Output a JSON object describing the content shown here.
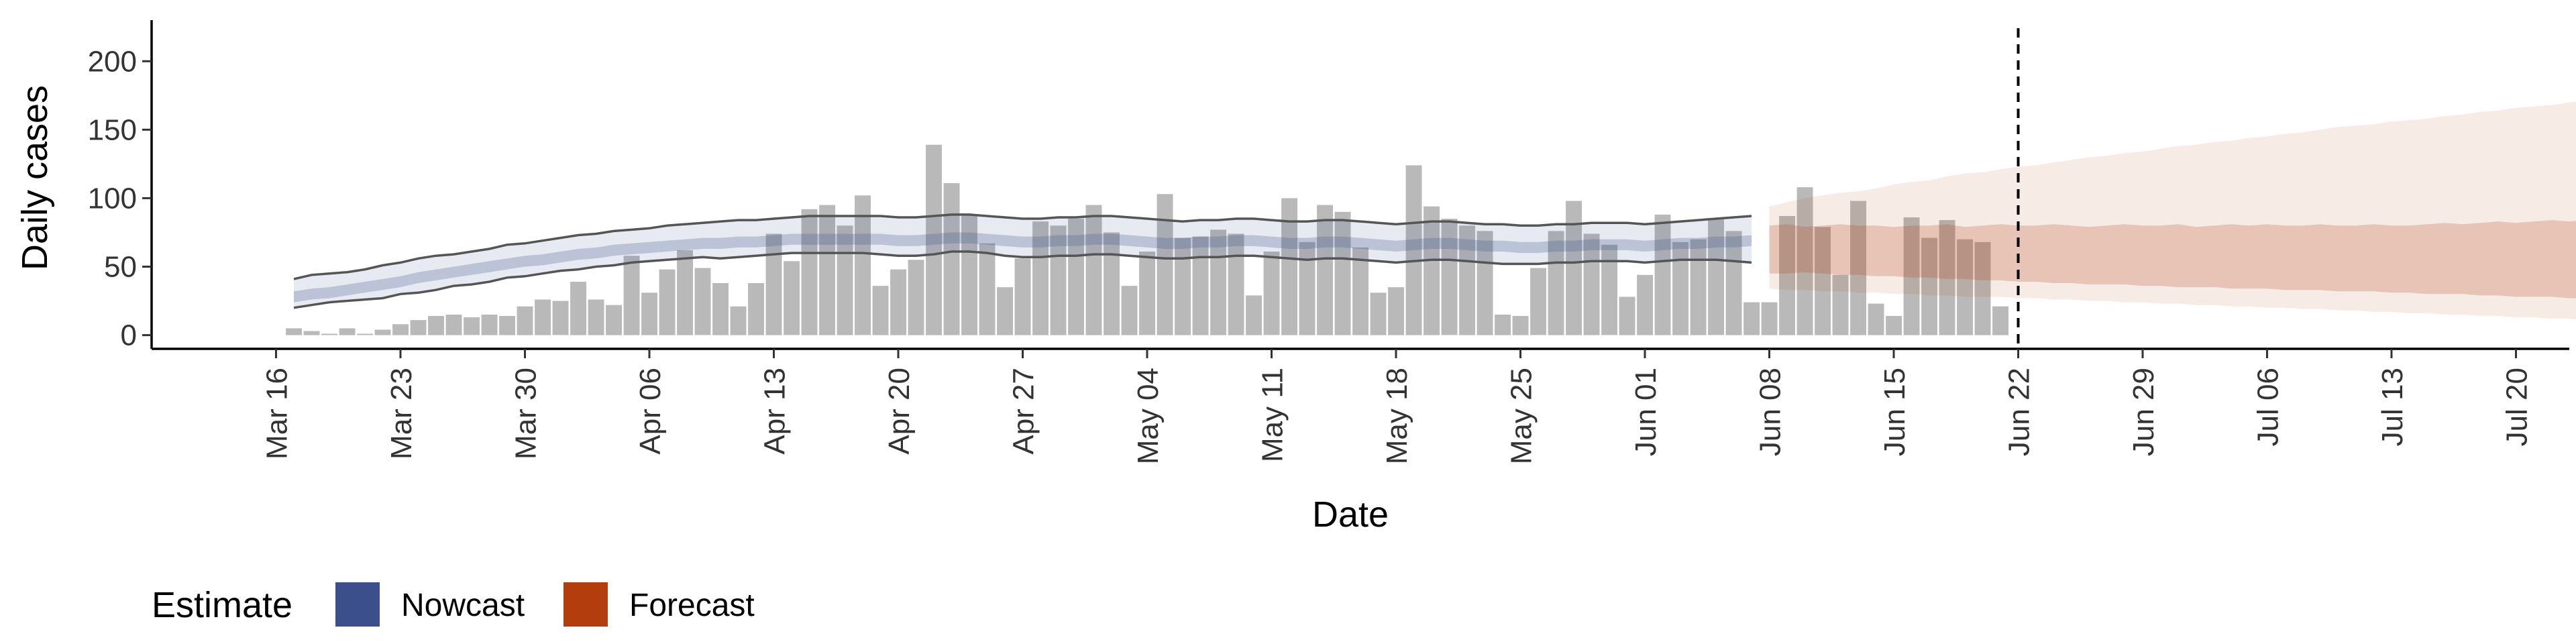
{
  "chart_data": {
    "type": "bar",
    "xlabel": "Date",
    "ylabel": "Daily cases",
    "x_start": "2020-03-17",
    "x_ticks": [
      "Mar 16",
      "Mar 23",
      "Mar 30",
      "Apr 06",
      "Apr 13",
      "Apr 20",
      "Apr 27",
      "May 04",
      "May 11",
      "May 18",
      "May 25",
      "Jun 01",
      "Jun 08",
      "Jun 15",
      "Jun 22",
      "Jun 29",
      "Jul 06",
      "Jul 13",
      "Jul 20"
    ],
    "y_ticks": [
      0,
      50,
      100,
      150,
      200
    ],
    "ylim": [
      -10,
      230
    ],
    "xlim": [
      "2020-03-09",
      "2020-07-23"
    ],
    "grid": false,
    "forecast_start": "2020-06-22",
    "daily_cases": [
      5,
      3,
      1,
      5,
      1,
      4,
      8,
      11,
      14,
      15,
      13,
      15,
      14,
      21,
      26,
      25,
      39,
      26,
      22,
      58,
      31,
      48,
      62,
      49,
      38,
      21,
      38,
      74,
      54,
      92,
      95,
      80,
      102,
      36,
      48,
      55,
      139,
      111,
      88,
      67,
      35,
      56,
      83,
      80,
      85,
      95,
      75,
      36,
      61,
      103,
      71,
      72,
      77,
      74,
      29,
      61,
      100,
      68,
      95,
      90,
      64,
      31,
      35,
      124,
      94,
      85,
      80,
      76,
      15,
      14,
      49,
      76,
      98,
      74,
      66,
      28,
      44,
      88,
      68,
      70,
      85,
      76,
      24,
      24,
      87,
      108,
      79,
      44,
      98,
      23,
      14,
      86,
      71,
      84,
      70,
      68,
      21
    ],
    "nowcast_median": [
      28,
      30,
      31,
      33,
      35,
      37,
      39,
      42,
      44,
      46,
      48,
      50,
      52,
      54,
      55,
      57,
      59,
      60,
      62,
      63,
      64,
      65,
      66,
      67,
      67,
      68,
      68,
      69,
      70,
      70,
      70,
      70,
      70,
      70,
      69,
      69,
      70,
      71,
      71,
      70,
      69,
      68,
      68,
      69,
      69,
      70,
      70,
      69,
      68,
      67,
      67,
      68,
      68,
      69,
      69,
      68,
      67,
      67,
      68,
      68,
      67,
      66,
      65,
      66,
      67,
      67,
      66,
      65,
      65,
      64,
      64,
      65,
      65,
      66,
      66,
      66,
      65,
      66,
      67,
      67,
      68,
      68,
      69
    ],
    "nowcast_inner": {
      "lower": [
        24,
        26,
        27,
        29,
        31,
        33,
        35,
        38,
        40,
        42,
        44,
        46,
        48,
        50,
        51,
        53,
        55,
        56,
        58,
        59,
        60,
        61,
        62,
        63,
        63,
        64,
        64,
        65,
        66,
        66,
        66,
        66,
        66,
        66,
        65,
        65,
        66,
        67,
        67,
        66,
        65,
        64,
        64,
        65,
        65,
        66,
        66,
        65,
        64,
        63,
        63,
        64,
        64,
        65,
        65,
        64,
        63,
        63,
        64,
        64,
        63,
        62,
        61,
        62,
        63,
        63,
        62,
        61,
        61,
        60,
        60,
        61,
        61,
        62,
        62,
        62,
        61,
        62,
        63,
        63,
        64,
        64,
        65
      ],
      "upper": [
        32,
        34,
        35,
        37,
        39,
        41,
        43,
        46,
        48,
        50,
        52,
        54,
        56,
        58,
        59,
        61,
        63,
        64,
        66,
        67,
        68,
        69,
        70,
        71,
        71,
        72,
        72,
        73,
        74,
        74,
        74,
        74,
        74,
        74,
        73,
        73,
        74,
        75,
        75,
        74,
        73,
        72,
        72,
        73,
        73,
        74,
        74,
        73,
        72,
        71,
        71,
        72,
        72,
        73,
        73,
        72,
        71,
        71,
        72,
        72,
        71,
        70,
        69,
        70,
        71,
        71,
        70,
        69,
        69,
        68,
        68,
        69,
        69,
        70,
        70,
        70,
        69,
        70,
        71,
        71,
        72,
        72,
        73
      ]
    },
    "nowcast_outer": {
      "lower": [
        20,
        22,
        24,
        25,
        26,
        27,
        30,
        31,
        33,
        36,
        37,
        39,
        42,
        43,
        45,
        47,
        48,
        50,
        51,
        53,
        54,
        55,
        56,
        57,
        56,
        57,
        58,
        59,
        60,
        60,
        60,
        60,
        60,
        59,
        58,
        58,
        59,
        61,
        61,
        60,
        58,
        57,
        57,
        58,
        58,
        59,
        59,
        58,
        57,
        56,
        56,
        57,
        57,
        58,
        58,
        57,
        56,
        55,
        56,
        56,
        55,
        54,
        53,
        54,
        55,
        55,
        54,
        53,
        52,
        52,
        52,
        53,
        53,
        54,
        54,
        54,
        53,
        54,
        55,
        55,
        55,
        54,
        53
      ],
      "upper": [
        41,
        44,
        45,
        46,
        48,
        51,
        53,
        56,
        58,
        59,
        61,
        63,
        66,
        67,
        69,
        71,
        73,
        74,
        76,
        77,
        78,
        80,
        81,
        82,
        83,
        84,
        84,
        85,
        86,
        87,
        87,
        87,
        87,
        87,
        86,
        86,
        87,
        88,
        88,
        87,
        86,
        85,
        85,
        86,
        86,
        87,
        87,
        86,
        85,
        84,
        83,
        84,
        84,
        85,
        85,
        84,
        83,
        83,
        84,
        84,
        83,
        82,
        81,
        82,
        83,
        83,
        82,
        81,
        81,
        80,
        80,
        81,
        81,
        82,
        82,
        82,
        81,
        82,
        83,
        84,
        85,
        86,
        87
      ]
    },
    "forecast_inner": {
      "lower": [
        45,
        45,
        46,
        45,
        44,
        44,
        43,
        43,
        42,
        42,
        41,
        41,
        40,
        40,
        39,
        39,
        38,
        38,
        37,
        37,
        37,
        36,
        36,
        35,
        35,
        35,
        34,
        34,
        34,
        33,
        33,
        33,
        32,
        32,
        32,
        31,
        31,
        30,
        30,
        30,
        29,
        29,
        28,
        28,
        28,
        27,
        27,
        26,
        26,
        25,
        25,
        25,
        24,
        24,
        24,
        23,
        23,
        22,
        22,
        22,
        21,
        21,
        21
      ],
      "upper": [
        80,
        81,
        79,
        80,
        81,
        80,
        80,
        79,
        80,
        80,
        81,
        79,
        80,
        81,
        80,
        80,
        81,
        80,
        79,
        80,
        81,
        80,
        80,
        81,
        79,
        80,
        81,
        80,
        81,
        80,
        80,
        81,
        80,
        80,
        81,
        80,
        80,
        81,
        82,
        81,
        82,
        83,
        82,
        83,
        84,
        83,
        84,
        85,
        84,
        85,
        86,
        85,
        86,
        87,
        86,
        87,
        88,
        87,
        88,
        88,
        89,
        89,
        89
      ]
    },
    "forecast_outer": {
      "lower": [
        34,
        33,
        33,
        32,
        32,
        31,
        31,
        30,
        30,
        29,
        29,
        28,
        28,
        28,
        27,
        27,
        26,
        26,
        25,
        25,
        24,
        24,
        23,
        23,
        22,
        22,
        21,
        21,
        20,
        20,
        19,
        19,
        18,
        18,
        17,
        17,
        16,
        16,
        15,
        15,
        14,
        14,
        13,
        13,
        12,
        12,
        11,
        11,
        10,
        10,
        9,
        9,
        8,
        8,
        7,
        7,
        6,
        6,
        5,
        5,
        4,
        4,
        3
      ],
      "upper": [
        94,
        97,
        100,
        102,
        104,
        105,
        107,
        110,
        112,
        113,
        116,
        118,
        119,
        121,
        123,
        124,
        126,
        128,
        130,
        131,
        133,
        134,
        136,
        138,
        139,
        141,
        142,
        144,
        145,
        147,
        148,
        150,
        152,
        153,
        154,
        156,
        157,
        158,
        160,
        161,
        163,
        164,
        166,
        167,
        168,
        170,
        171,
        173,
        175,
        176,
        178,
        180,
        182,
        184,
        186,
        188,
        190,
        193,
        196,
        199,
        202,
        206,
        210
      ]
    },
    "legend": {
      "title": "Estimate",
      "items": [
        {
          "label": "Nowcast",
          "color": "#3b4f8c"
        },
        {
          "label": "Forecast",
          "color": "#b33d0c"
        }
      ]
    },
    "colors": {
      "bars": "#b9b9b9",
      "nowcast": "#3b4f8c",
      "forecast": "#b33d0c",
      "outer_band_lines": "#555555",
      "forecast_line": "#000000"
    }
  }
}
